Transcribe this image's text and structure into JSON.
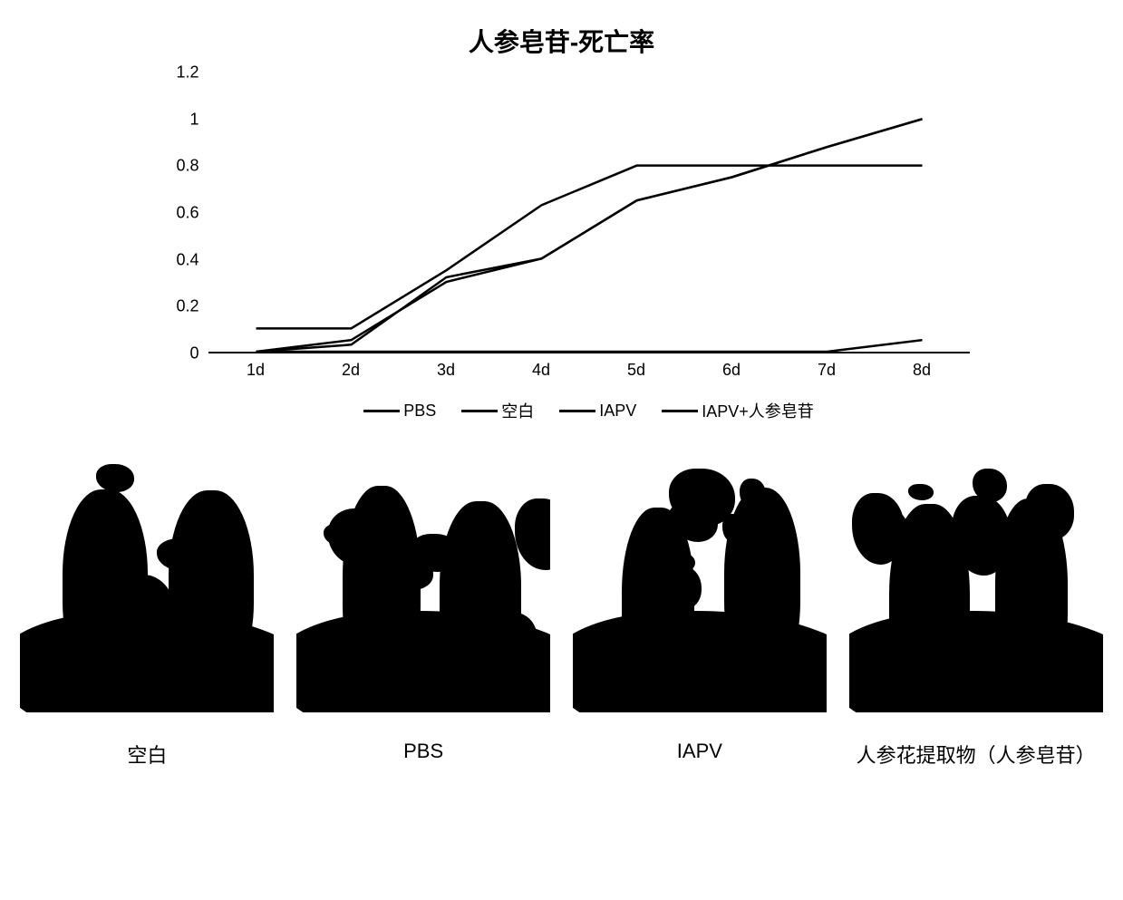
{
  "chart": {
    "type": "line",
    "title": "人参皂苷-死亡率",
    "title_fontsize": 28,
    "x_categories": [
      "1d",
      "2d",
      "3d",
      "4d",
      "5d",
      "6d",
      "7d",
      "8d"
    ],
    "ylim": [
      0,
      1.2
    ],
    "ytick_step": 0.2,
    "y_ticks": [
      "0",
      "0.2",
      "0.4",
      "0.6",
      "0.8",
      "1",
      "1.2"
    ],
    "background_color": "#ffffff",
    "axis_color": "#000000",
    "label_fontsize": 18,
    "line_width": 2.5,
    "series": [
      {
        "name": "PBS",
        "color": "#000000",
        "values": [
          0.0,
          0.03,
          0.32,
          0.4,
          0.65,
          0.75,
          0.88,
          1.0
        ]
      },
      {
        "name": "空白",
        "color": "#000000",
        "values": [
          0.0,
          0.0,
          0.0,
          0.0,
          0.0,
          0.0,
          0.0,
          0.05
        ]
      },
      {
        "name": "IAPV",
        "color": "#000000",
        "values": [
          0.1,
          0.1,
          0.35,
          0.63,
          0.8,
          0.8,
          0.8,
          0.8
        ]
      },
      {
        "name": "IAPV+人参皂苷",
        "color": "#000000",
        "values": [
          0.0,
          0.05,
          0.3,
          0.4,
          0.65,
          0.75,
          0.88,
          1.0
        ]
      }
    ],
    "legend": {
      "items": [
        "PBS",
        "空白",
        "IAPV",
        "IAPV+人参皂苷"
      ],
      "position": "bottom",
      "fontsize": 18
    }
  },
  "photos": {
    "captions": [
      "空白",
      "PBS",
      "IAPV",
      "人参花提取物（人参皂苷）"
    ],
    "caption_fontsize": 22
  }
}
